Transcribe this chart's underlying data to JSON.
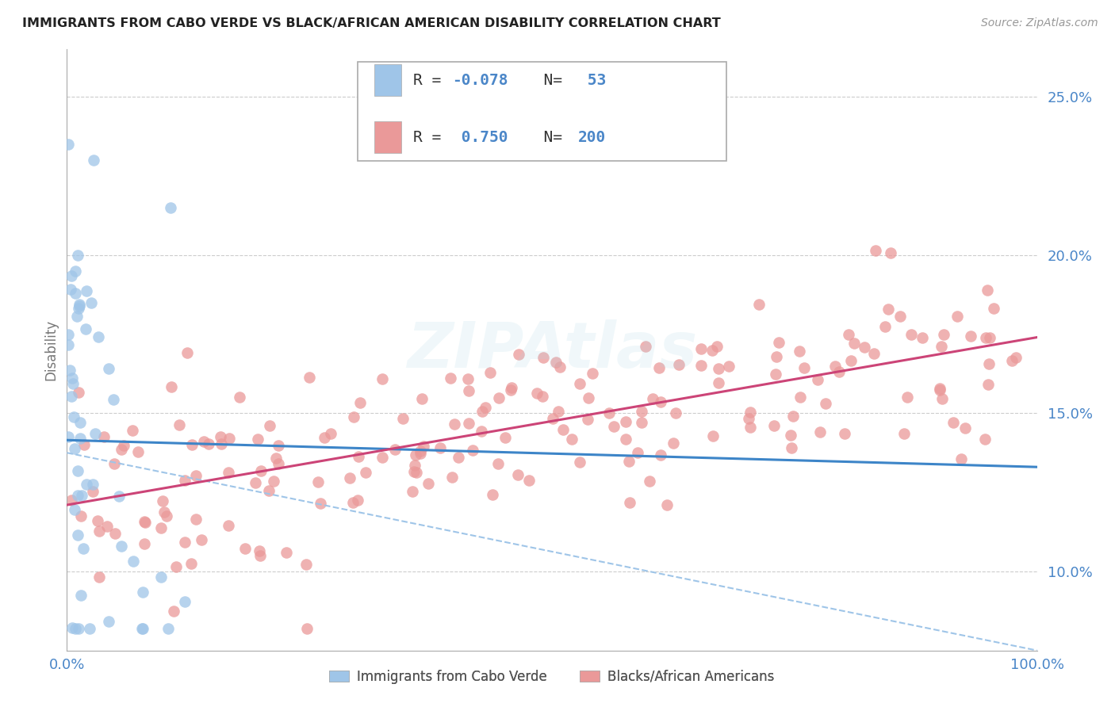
{
  "title": "IMMIGRANTS FROM CABO VERDE VS BLACK/AFRICAN AMERICAN DISABILITY CORRELATION CHART",
  "source": "Source: ZipAtlas.com",
  "ylabel": "Disability",
  "ytick_labels": [
    "10.0%",
    "15.0%",
    "20.0%",
    "25.0%"
  ],
  "ytick_positions": [
    0.1,
    0.15,
    0.2,
    0.25
  ],
  "watermark": "ZIPAtlas",
  "legend_blue_R": "-0.078",
  "legend_blue_N": "53",
  "legend_pink_R": "0.750",
  "legend_pink_N": "200",
  "blue_color": "#9fc5e8",
  "pink_color": "#ea9999",
  "blue_line_color": "#3d85c8",
  "pink_line_color": "#cc4477",
  "dashed_line_color": "#9fc5e8",
  "axis_color": "#4a86c8",
  "grid_color": "#cccccc",
  "background_color": "#ffffff",
  "legend_label_blue": "Immigrants from Cabo Verde",
  "legend_label_pink": "Blacks/African Americans",
  "blue_trend_y_start": 0.1415,
  "blue_trend_y_end": 0.133,
  "pink_trend_y_start": 0.121,
  "pink_trend_y_end": 0.174,
  "dashed_trend_y_start": 0.1375,
  "dashed_trend_y_end": 0.075,
  "xmin": 0.0,
  "xmax": 1.0,
  "ymin": 0.075,
  "ymax": 0.265
}
